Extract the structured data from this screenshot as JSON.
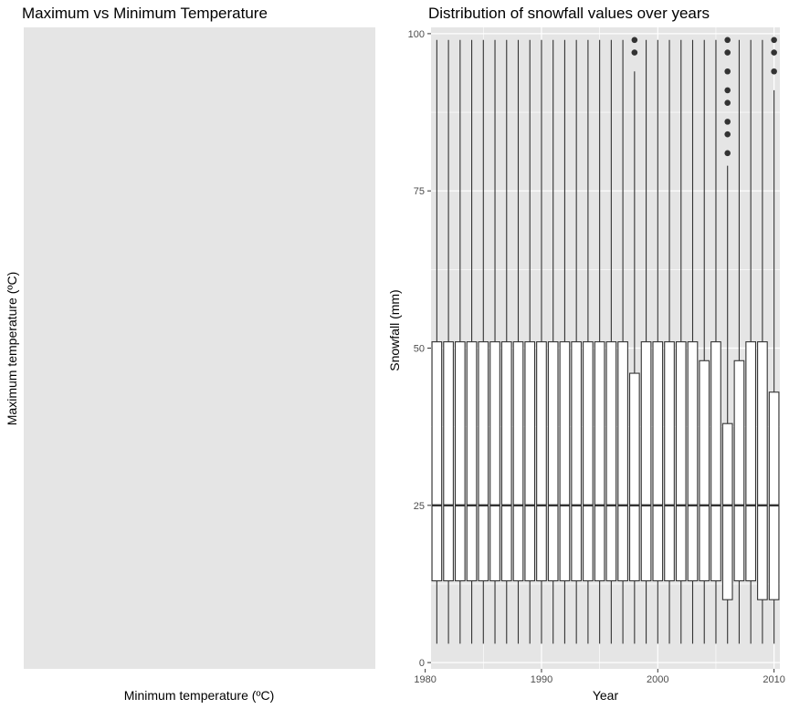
{
  "panel_background": "#e5e5e5",
  "grid_color": "#ffffff",
  "box_fill": "#ffffff",
  "box_stroke": "#333333",
  "chart_data": [
    {
      "type": "scatter",
      "title": "Maximum vs Minimum Temperature",
      "xlabel": "Minimum temperature (ºC)",
      "ylabel": "Maximum temperature (ºC)",
      "points": [],
      "grid": false
    },
    {
      "type": "box",
      "title": "Distribution of snowfall values over years",
      "xlabel": "Year",
      "ylabel": "Snowfall (mm)",
      "xlim": [
        1980.5,
        2010.5
      ],
      "ylim": [
        -1,
        101
      ],
      "x_ticks": [
        1980,
        1990,
        2000,
        2010
      ],
      "y_ticks": [
        0,
        25,
        50,
        75,
        100
      ],
      "grid": true,
      "boxes": [
        {
          "x": 1981,
          "min": 3,
          "q1": 13,
          "median": 25,
          "q3": 51,
          "max": 99,
          "outliers": []
        },
        {
          "x": 1982,
          "min": 3,
          "q1": 13,
          "median": 25,
          "q3": 51,
          "max": 99,
          "outliers": []
        },
        {
          "x": 1983,
          "min": 3,
          "q1": 13,
          "median": 25,
          "q3": 51,
          "max": 99,
          "outliers": []
        },
        {
          "x": 1984,
          "min": 3,
          "q1": 13,
          "median": 25,
          "q3": 51,
          "max": 99,
          "outliers": []
        },
        {
          "x": 1985,
          "min": 3,
          "q1": 13,
          "median": 25,
          "q3": 51,
          "max": 99,
          "outliers": []
        },
        {
          "x": 1986,
          "min": 3,
          "q1": 13,
          "median": 25,
          "q3": 51,
          "max": 99,
          "outliers": []
        },
        {
          "x": 1987,
          "min": 3,
          "q1": 13,
          "median": 25,
          "q3": 51,
          "max": 99,
          "outliers": []
        },
        {
          "x": 1988,
          "min": 3,
          "q1": 13,
          "median": 25,
          "q3": 51,
          "max": 99,
          "outliers": []
        },
        {
          "x": 1989,
          "min": 3,
          "q1": 13,
          "median": 25,
          "q3": 51,
          "max": 99,
          "outliers": []
        },
        {
          "x": 1990,
          "min": 3,
          "q1": 13,
          "median": 25,
          "q3": 51,
          "max": 99,
          "outliers": []
        },
        {
          "x": 1991,
          "min": 3,
          "q1": 13,
          "median": 25,
          "q3": 51,
          "max": 99,
          "outliers": []
        },
        {
          "x": 1992,
          "min": 3,
          "q1": 13,
          "median": 25,
          "q3": 51,
          "max": 99,
          "outliers": []
        },
        {
          "x": 1993,
          "min": 3,
          "q1": 13,
          "median": 25,
          "q3": 51,
          "max": 99,
          "outliers": []
        },
        {
          "x": 1994,
          "min": 3,
          "q1": 13,
          "median": 25,
          "q3": 51,
          "max": 99,
          "outliers": []
        },
        {
          "x": 1995,
          "min": 3,
          "q1": 13,
          "median": 25,
          "q3": 51,
          "max": 99,
          "outliers": []
        },
        {
          "x": 1996,
          "min": 3,
          "q1": 13,
          "median": 25,
          "q3": 51,
          "max": 99,
          "outliers": []
        },
        {
          "x": 1997,
          "min": 3,
          "q1": 13,
          "median": 25,
          "q3": 51,
          "max": 99,
          "outliers": []
        },
        {
          "x": 1998,
          "min": 3,
          "q1": 13,
          "median": 25,
          "q3": 46,
          "max": 94,
          "outliers": [
            97,
            99
          ]
        },
        {
          "x": 1999,
          "min": 3,
          "q1": 13,
          "median": 25,
          "q3": 51,
          "max": 99,
          "outliers": []
        },
        {
          "x": 2000,
          "min": 3,
          "q1": 13,
          "median": 25,
          "q3": 51,
          "max": 99,
          "outliers": []
        },
        {
          "x": 2001,
          "min": 3,
          "q1": 13,
          "median": 25,
          "q3": 51,
          "max": 99,
          "outliers": []
        },
        {
          "x": 2002,
          "min": 3,
          "q1": 13,
          "median": 25,
          "q3": 51,
          "max": 99,
          "outliers": []
        },
        {
          "x": 2003,
          "min": 3,
          "q1": 13,
          "median": 25,
          "q3": 51,
          "max": 99,
          "outliers": []
        },
        {
          "x": 2004,
          "min": 3,
          "q1": 13,
          "median": 25,
          "q3": 48,
          "max": 99,
          "outliers": []
        },
        {
          "x": 2005,
          "min": 3,
          "q1": 13,
          "median": 25,
          "q3": 51,
          "max": 99,
          "outliers": []
        },
        {
          "x": 2006,
          "min": 3,
          "q1": 10,
          "median": 25,
          "q3": 38,
          "max": 79,
          "outliers": [
            81,
            84,
            86,
            89,
            91,
            94,
            97,
            99
          ]
        },
        {
          "x": 2007,
          "min": 3,
          "q1": 13,
          "median": 25,
          "q3": 48,
          "max": 99,
          "outliers": []
        },
        {
          "x": 2008,
          "min": 3,
          "q1": 13,
          "median": 25,
          "q3": 51,
          "max": 99,
          "outliers": []
        },
        {
          "x": 2009,
          "min": 3,
          "q1": 10,
          "median": 25,
          "q3": 51,
          "max": 99,
          "outliers": []
        },
        {
          "x": 2010,
          "min": 3,
          "q1": 10,
          "median": 25,
          "q3": 43,
          "max": 91,
          "outliers": [
            94,
            97,
            99
          ]
        }
      ]
    }
  ]
}
